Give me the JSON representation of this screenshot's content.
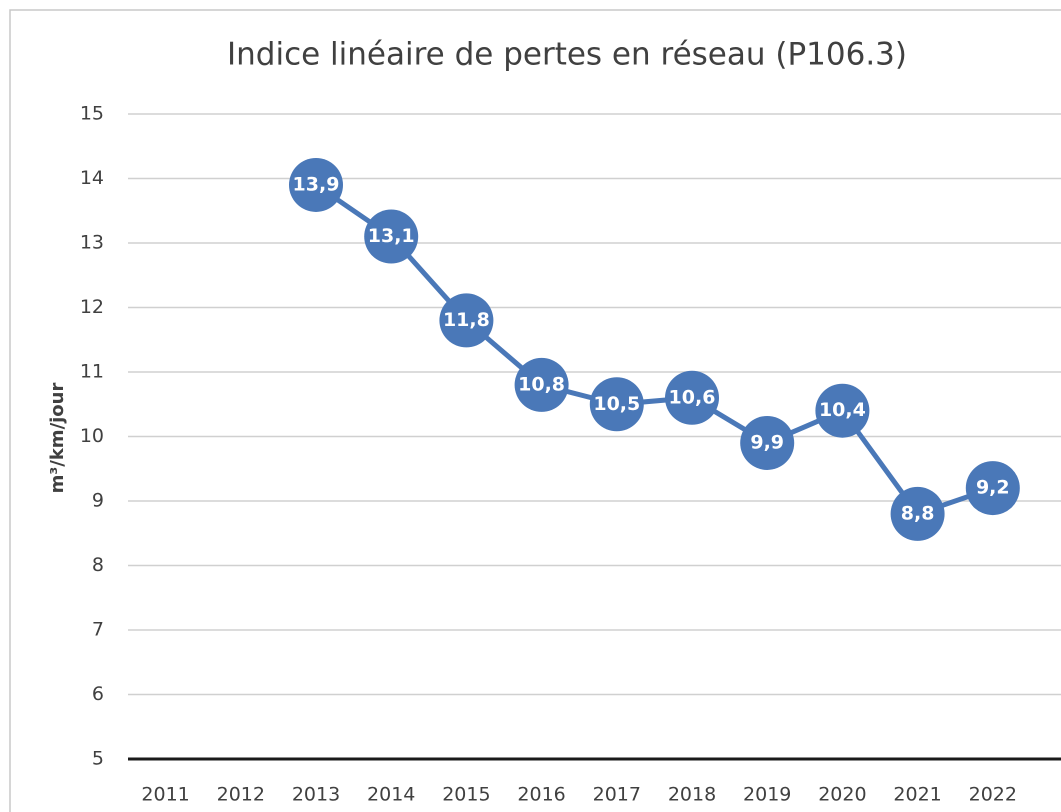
{
  "chart_data": {
    "type": "line",
    "title": "Indice linéaire de pertes en réseau (P106.3)",
    "y_label": "m³/km/jour",
    "categories": [
      "2011",
      "2012",
      "2013",
      "2014",
      "2015",
      "2016",
      "2017",
      "2018",
      "2019",
      "2020",
      "2021",
      "2022"
    ],
    "values": [
      null,
      null,
      13.9,
      13.1,
      11.8,
      10.8,
      10.5,
      10.6,
      9.9,
      10.4,
      8.8,
      9.2
    ],
    "value_labels": [
      null,
      null,
      "13,9",
      "13,1",
      "11,8",
      "10,8",
      "10,5",
      "10,6",
      "9,9",
      "10,4",
      "8,8",
      "9,2"
    ],
    "color": "#4a78b8",
    "ylim": [
      5,
      15
    ],
    "yticks": [
      5,
      6,
      7,
      8,
      9,
      10,
      11,
      12,
      13,
      14,
      15
    ],
    "grid": true
  }
}
